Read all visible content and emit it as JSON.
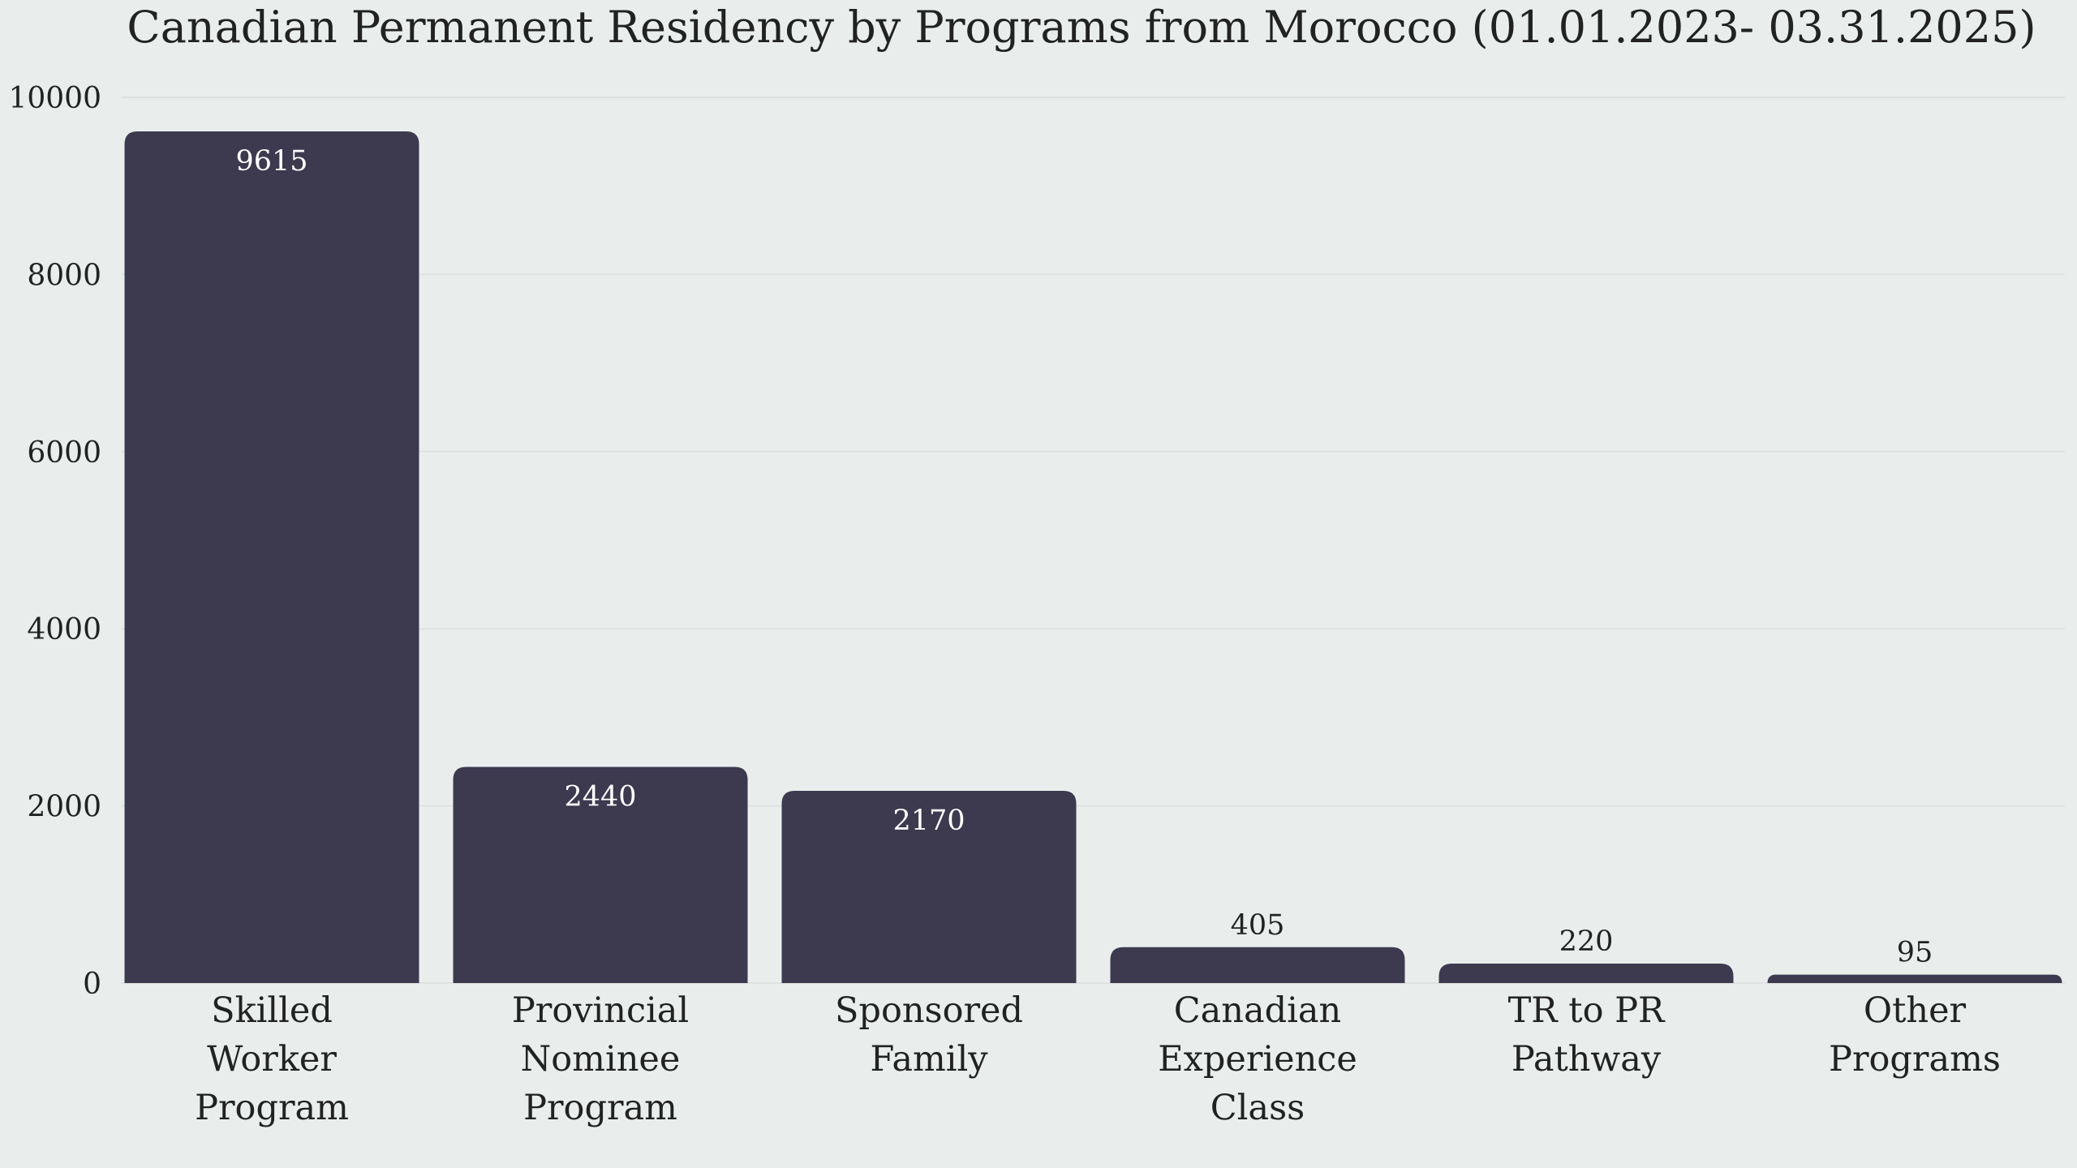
{
  "chart_data": {
    "type": "bar",
    "title": "Canadian Permanent Residency by Programs from Morocco (01.01.2023- 03.31.2025)",
    "xlabel": "",
    "ylabel": "",
    "categories": [
      "Skilled Worker Program",
      "Provincial Nominee Program",
      "Sponsored Family",
      "Canadian Experience Class",
      "TR to PR Pathway",
      "Other Programs"
    ],
    "category_lines": [
      [
        "Skilled",
        "Worker",
        "Program"
      ],
      [
        "Provincial",
        "Nominee",
        "Program"
      ],
      [
        "Sponsored",
        "Family"
      ],
      [
        "Canadian",
        "Experience",
        "Class"
      ],
      [
        "TR to PR",
        "Pathway"
      ],
      [
        "Other",
        "Programs"
      ]
    ],
    "values": [
      9615,
      2440,
      2170,
      405,
      220,
      95
    ],
    "data_labels": [
      "9615",
      "2440",
      "2170",
      "405",
      "220",
      "95"
    ],
    "ylim": [
      0,
      10000
    ],
    "yticks": [
      0,
      2000,
      4000,
      6000,
      8000,
      10000
    ],
    "ytick_labels": [
      "0",
      "2000",
      "4000",
      "6000",
      "8000",
      "10000"
    ],
    "grid": true,
    "legend": "none",
    "colors": {
      "bar": "#3d394f",
      "background": "#e9eeed",
      "gridline": "#dde2e1",
      "text": "#222222",
      "label_inside": "#ffffff"
    }
  }
}
